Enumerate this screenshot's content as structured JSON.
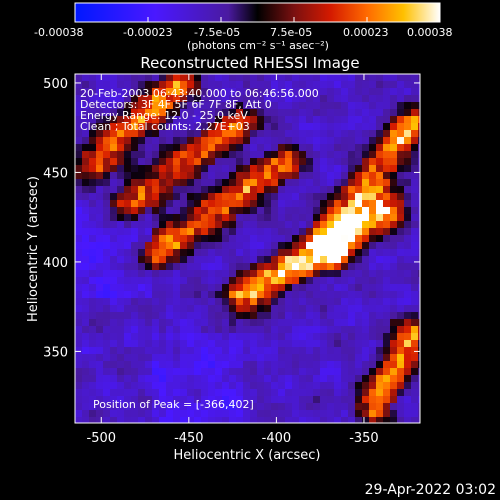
{
  "colorbar": {
    "ticks": [
      "-0.00038",
      "-0.00023",
      "-7.5e-05",
      "7.5e-05",
      "0.00023",
      "0.00038"
    ],
    "unit_label": "(photons cm⁻² s⁻¹ asec⁻²)",
    "range": [
      -0.00038,
      0.00038
    ]
  },
  "chart_data": {
    "type": "heatmap",
    "title": "Reconstructed RHESSI Image",
    "xlabel": "Heliocentric X (arcsec)",
    "ylabel": "Heliocentric Y (arcsec)",
    "xlim": [
      -515,
      -318
    ],
    "ylim": [
      310,
      505
    ],
    "x_ticks": [
      -500,
      -450,
      -400,
      -350
    ],
    "y_ticks": [
      350,
      400,
      450,
      500
    ],
    "peak": {
      "x": -366,
      "y": 402
    },
    "bright_ridges": [
      {
        "x0": -505,
        "y0": 455,
        "x1": -455,
        "y1": 500,
        "strength": 0.85
      },
      {
        "x0": -485,
        "y0": 432,
        "x1": -420,
        "y1": 478,
        "strength": 0.75
      },
      {
        "x0": -470,
        "y0": 405,
        "x1": -395,
        "y1": 455,
        "strength": 0.8
      },
      {
        "x0": -420,
        "y0": 380,
        "x1": -335,
        "y1": 430,
        "strength": 1.0
      },
      {
        "x0": -372,
        "y0": 412,
        "x1": -322,
        "y1": 478,
        "strength": 0.9
      },
      {
        "x0": -345,
        "y0": 318,
        "x1": -322,
        "y1": 360,
        "strength": 0.85
      }
    ],
    "annotations": [
      "20-Feb-2003 06:43:40.000 to 06:46:56.000",
      "Detectors: 3F 4F 5F 6F 7F 8F, Att 0",
      "Energy Range: 12.0 - 25.0 keV",
      "Clean ; Total counts: 2.27E+03"
    ],
    "peak_label": "Position of Peak = [-366,402]"
  },
  "footer": {
    "timestamp": "29-Apr-2022 03:02"
  }
}
